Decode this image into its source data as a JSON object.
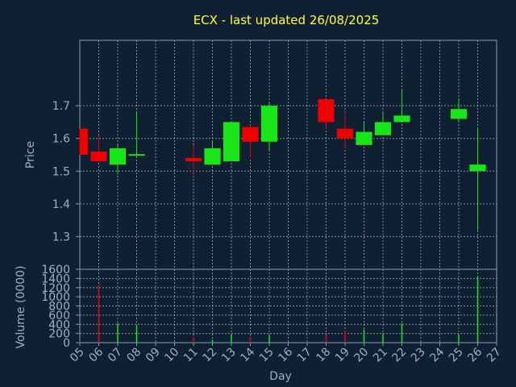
{
  "title": "ECX - last updated 26/08/2025",
  "colors": {
    "background": "#102033",
    "frame": "#7f9bc0",
    "grid": "#a8b8cc",
    "up": "#19e619",
    "down": "#ee0000",
    "text": "#9ab0c8",
    "title": "#ffff33"
  },
  "chart_data": [
    {
      "type": "candlestick",
      "ylabel": "Price",
      "ylim": [
        1.2,
        1.9
      ],
      "yticks": [
        "1.3",
        "1.4",
        "1.5",
        "1.6",
        "1.7"
      ],
      "ytick_values": [
        1.3,
        1.4,
        1.5,
        1.6,
        1.7
      ],
      "grid": true,
      "candles": [
        {
          "day": "05",
          "open": 1.63,
          "close": 1.55,
          "high": 1.63,
          "low": 1.55
        },
        {
          "day": "06",
          "open": 1.56,
          "close": 1.53,
          "high": 1.61,
          "low": 1.53
        },
        {
          "day": "07",
          "open": 1.52,
          "close": 1.57,
          "high": 1.58,
          "low": 1.49
        },
        {
          "day": "08",
          "open": 1.548,
          "close": 1.552,
          "high": 1.68,
          "low": 1.548
        },
        {
          "day": "11",
          "open": 1.54,
          "close": 1.53,
          "high": 1.58,
          "low": 1.5
        },
        {
          "day": "12",
          "open": 1.52,
          "close": 1.57,
          "high": 1.59,
          "low": 1.52
        },
        {
          "day": "13",
          "open": 1.53,
          "close": 1.65,
          "high": 1.65,
          "low": 1.53
        },
        {
          "day": "14",
          "open": 1.635,
          "close": 1.59,
          "high": 1.64,
          "low": 1.54
        },
        {
          "day": "15",
          "open": 1.59,
          "close": 1.7,
          "high": 1.71,
          "low": 1.56
        },
        {
          "day": "18",
          "open": 1.72,
          "close": 1.65,
          "high": 1.72,
          "low": 1.63
        },
        {
          "day": "19",
          "open": 1.63,
          "close": 1.6,
          "high": 1.68,
          "low": 1.57
        },
        {
          "day": "20",
          "open": 1.58,
          "close": 1.62,
          "high": 1.65,
          "low": 1.58
        },
        {
          "day": "21",
          "open": 1.61,
          "close": 1.65,
          "high": 1.68,
          "low": 1.61
        },
        {
          "day": "22",
          "open": 1.65,
          "close": 1.67,
          "high": 1.75,
          "low": 1.65
        },
        {
          "day": "25",
          "open": 1.66,
          "close": 1.69,
          "high": 1.72,
          "low": 1.65
        },
        {
          "day": "26",
          "open": 1.5,
          "close": 1.52,
          "high": 1.63,
          "low": 1.32
        }
      ]
    },
    {
      "type": "bar",
      "ylabel": "Volume (0000)",
      "xlabel": "Day",
      "ylim": [
        0,
        1600
      ],
      "yticks": [
        "0",
        "200",
        "400",
        "600",
        "800",
        "1000",
        "1200",
        "1400",
        "1600"
      ],
      "ytick_values": [
        0,
        200,
        400,
        600,
        800,
        1000,
        1200,
        1400,
        1600
      ],
      "categories": [
        "05",
        "06",
        "07",
        "08",
        "09",
        "10",
        "11",
        "12",
        "13",
        "14",
        "15",
        "16",
        "17",
        "18",
        "19",
        "20",
        "21",
        "22",
        "23",
        "24",
        "25",
        "26",
        "27"
      ],
      "volumes": [
        {
          "day": "05",
          "value": 30,
          "direction": "down"
        },
        {
          "day": "06",
          "value": 1260,
          "direction": "down"
        },
        {
          "day": "07",
          "value": 420,
          "direction": "up"
        },
        {
          "day": "08",
          "value": 370,
          "direction": "up"
        },
        {
          "day": "11",
          "value": 120,
          "direction": "down"
        },
        {
          "day": "12",
          "value": 60,
          "direction": "up"
        },
        {
          "day": "13",
          "value": 190,
          "direction": "up"
        },
        {
          "day": "14",
          "value": 130,
          "direction": "down"
        },
        {
          "day": "15",
          "value": 160,
          "direction": "up"
        },
        {
          "day": "18",
          "value": 160,
          "direction": "down"
        },
        {
          "day": "19",
          "value": 260,
          "direction": "down"
        },
        {
          "day": "20",
          "value": 290,
          "direction": "up"
        },
        {
          "day": "21",
          "value": 200,
          "direction": "up"
        },
        {
          "day": "22",
          "value": 420,
          "direction": "up"
        },
        {
          "day": "25",
          "value": 180,
          "direction": "up"
        },
        {
          "day": "26",
          "value": 1430,
          "direction": "up"
        }
      ]
    }
  ]
}
